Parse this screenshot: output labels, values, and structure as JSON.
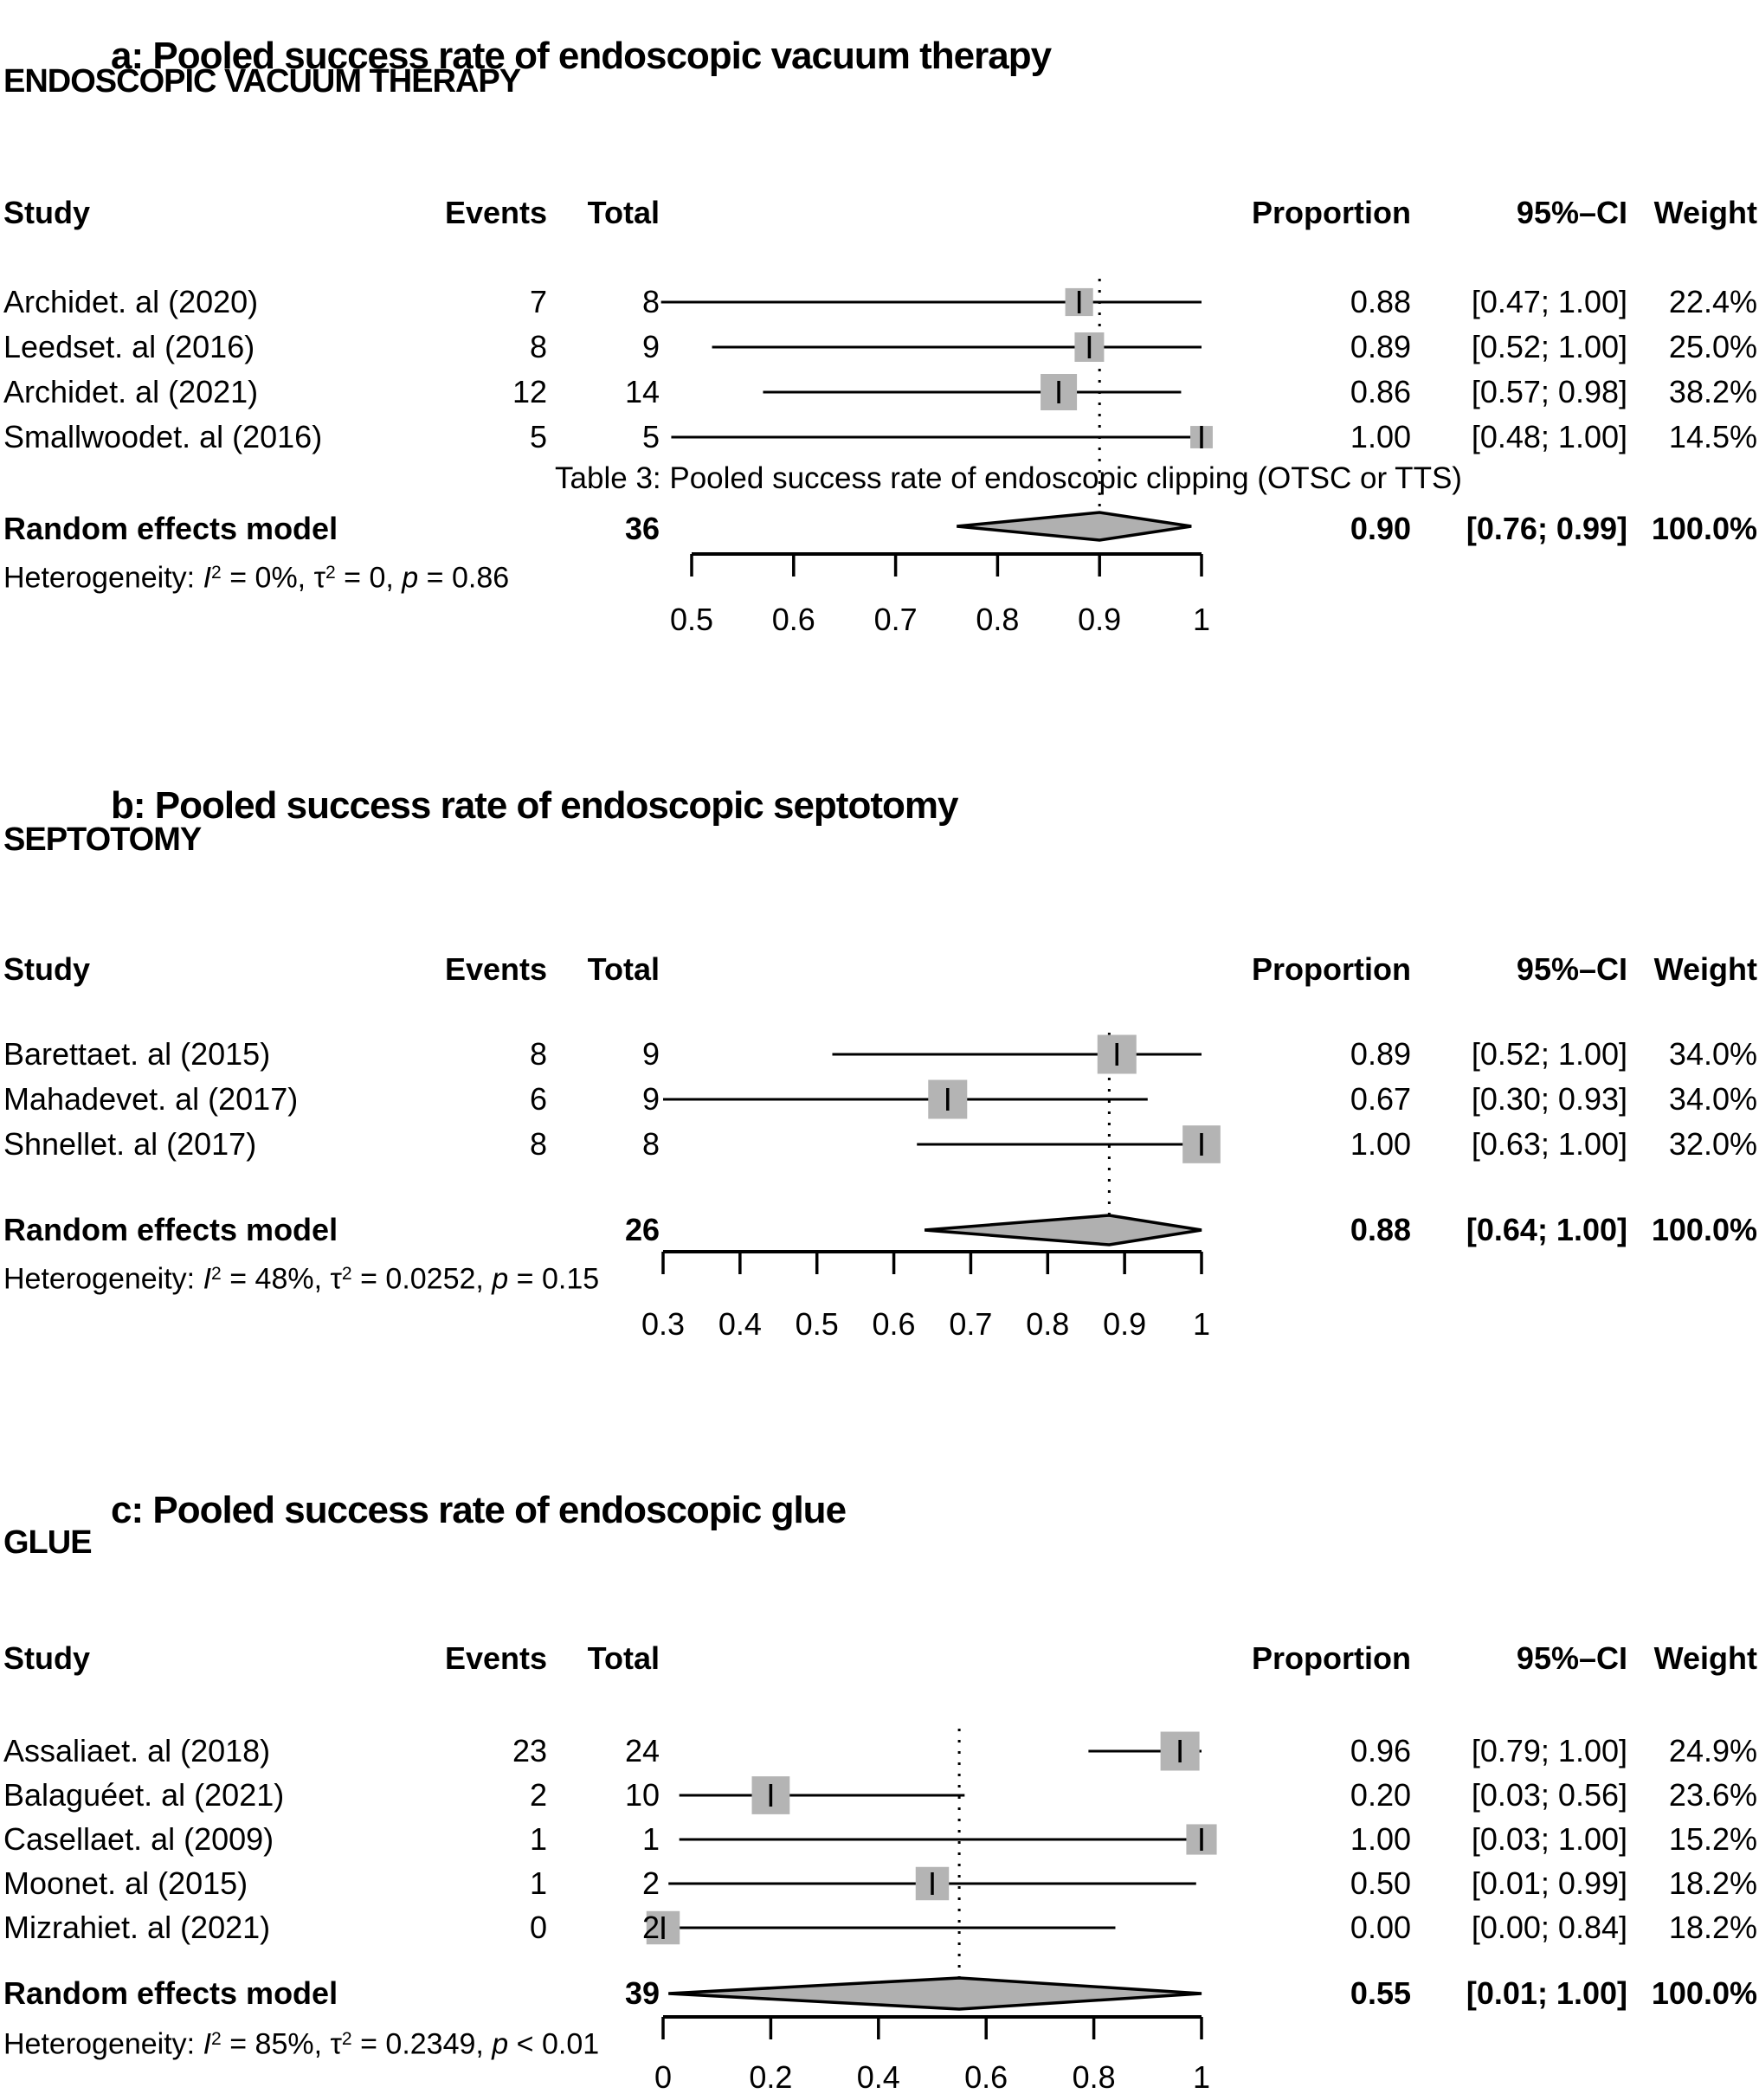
{
  "colors": {
    "marker_fill": "#b4b4b4",
    "diamond_fill": "#b0b0b0",
    "line": "#000000",
    "background": "#ffffff"
  },
  "figure": {
    "panels": [
      {
        "title": "a: Pooled success rate of endoscopic vacuum therapy",
        "section_label": "ENDOSCOPIC VACUUM THERAPY",
        "columns": {
          "study": "Study",
          "events": "Events",
          "total": "Total",
          "proportion": "Proportion",
          "ci": "95%–CI",
          "weight": "Weight"
        },
        "studies": [
          {
            "study": "Archidet. al (2020)",
            "events": "7",
            "total": "8",
            "proportion": "0.88",
            "ci": "[0.47; 1.00]",
            "weight": "22.4%"
          },
          {
            "study": "Leedset. al (2016)",
            "events": "8",
            "total": "9",
            "proportion": "0.89",
            "ci": "[0.52; 1.00]",
            "weight": "25.0%"
          },
          {
            "study": "Archidet. al (2021)",
            "events": "12",
            "total": "14",
            "proportion": "0.86",
            "ci": "[0.57; 0.98]",
            "weight": "38.2%"
          },
          {
            "study": "Smallwoodet. al (2016)",
            "events": "5",
            "total": "5",
            "proportion": "1.00",
            "ci": "[0.48; 1.00]",
            "weight": "14.5%"
          }
        ],
        "overlay_caption": "Table 3: Pooled success rate of endoscopic clipping (OTSC or TTS)",
        "summary": {
          "label": "Random effects model",
          "total": "36",
          "proportion": "0.90",
          "ci": "[0.76; 0.99]",
          "weight": "100.0%"
        },
        "heterogeneity": [
          {
            "t": "Heterogeneity: ",
            "s": ""
          },
          {
            "t": "I",
            "s": "i"
          },
          {
            "t": "2",
            "s": "sup"
          },
          {
            "t": " = 0%, ",
            "s": ""
          },
          {
            "t": "τ",
            "s": ""
          },
          {
            "t": "2",
            "s": "sup"
          },
          {
            "t": " = 0, ",
            "s": ""
          },
          {
            "t": "p",
            "s": "i"
          },
          {
            "t": " = 0.86",
            "s": ""
          }
        ],
        "axis_tick_labels": [
          "0.5",
          "0.6",
          "0.7",
          "0.8",
          "0.9",
          "1"
        ]
      },
      {
        "title": "b: Pooled success rate of endoscopic septotomy",
        "section_label": "SEPTOTOMY",
        "columns": {
          "study": "Study",
          "events": "Events",
          "total": "Total",
          "proportion": "Proportion",
          "ci": "95%–CI",
          "weight": "Weight"
        },
        "studies": [
          {
            "study": "Barettaet. al (2015)",
            "events": "8",
            "total": "9",
            "proportion": "0.89",
            "ci": "[0.52; 1.00]",
            "weight": "34.0%"
          },
          {
            "study": "Mahadevet. al (2017)",
            "events": "6",
            "total": "9",
            "proportion": "0.67",
            "ci": "[0.30; 0.93]",
            "weight": "34.0%"
          },
          {
            "study": "Shnellet. al (2017)",
            "events": "8",
            "total": "8",
            "proportion": "1.00",
            "ci": "[0.63; 1.00]",
            "weight": "32.0%"
          }
        ],
        "overlay_caption": "",
        "summary": {
          "label": "Random effects model",
          "total": "26",
          "proportion": "0.88",
          "ci": "[0.64; 1.00]",
          "weight": "100.0%"
        },
        "heterogeneity": [
          {
            "t": "Heterogeneity: ",
            "s": ""
          },
          {
            "t": "I",
            "s": "i"
          },
          {
            "t": "2",
            "s": "sup"
          },
          {
            "t": " = 48%, ",
            "s": ""
          },
          {
            "t": "τ",
            "s": ""
          },
          {
            "t": "2",
            "s": "sup"
          },
          {
            "t": " = 0.0252, ",
            "s": ""
          },
          {
            "t": "p",
            "s": "i"
          },
          {
            "t": " = 0.15",
            "s": ""
          }
        ],
        "axis_tick_labels": [
          "0.3",
          "0.4",
          "0.5",
          "0.6",
          "0.7",
          "0.8",
          "0.9",
          "1"
        ]
      },
      {
        "title": "c: Pooled success rate of endoscopic glue",
        "section_label": "GLUE",
        "columns": {
          "study": "Study",
          "events": "Events",
          "total": "Total",
          "proportion": "Proportion",
          "ci": "95%–CI",
          "weight": "Weight"
        },
        "studies": [
          {
            "study": "Assaliaet. al (2018)",
            "events": "23",
            "total": "24",
            "proportion": "0.96",
            "ci": "[0.79; 1.00]",
            "weight": "24.9%"
          },
          {
            "study": "Balaguéet. al (2021)",
            "events": "2",
            "total": "10",
            "proportion": "0.20",
            "ci": "[0.03; 0.56]",
            "weight": "23.6%"
          },
          {
            "study": "Casellaet. al (2009)",
            "events": "1",
            "total": "1",
            "proportion": "1.00",
            "ci": "[0.03; 1.00]",
            "weight": "15.2%"
          },
          {
            "study": "Moonet. al (2015)",
            "events": "1",
            "total": "2",
            "proportion": "0.50",
            "ci": "[0.01; 0.99]",
            "weight": "18.2%"
          },
          {
            "study": "Mizrahiet. al (2021)",
            "events": "0",
            "total": "2",
            "proportion": "0.00",
            "ci": "[0.00; 0.84]",
            "weight": "18.2%"
          }
        ],
        "overlay_caption": "",
        "summary": {
          "label": "Random effects model",
          "total": "39",
          "proportion": "0.55",
          "ci": "[0.01; 1.00]",
          "weight": "100.0%"
        },
        "heterogeneity": [
          {
            "t": "Heterogeneity: ",
            "s": ""
          },
          {
            "t": "I",
            "s": "i"
          },
          {
            "t": "2",
            "s": "sup"
          },
          {
            "t": " = 85%, ",
            "s": ""
          },
          {
            "t": "τ",
            "s": ""
          },
          {
            "t": "2",
            "s": "sup"
          },
          {
            "t": " = 0.2349, ",
            "s": ""
          },
          {
            "t": "p",
            "s": "i"
          },
          {
            "t": " < 0.01",
            "s": ""
          }
        ],
        "axis_tick_labels": [
          "0",
          "0.2",
          "0.4",
          "0.6",
          "0.8",
          "1"
        ]
      }
    ]
  },
  "chart_data": [
    {
      "type": "scatter",
      "subtype": "forest",
      "title": "a: Pooled success rate of endoscopic vacuum therapy",
      "group": "ENDOSCOPIC VACUUM THERAPY",
      "xlim": [
        0.5,
        1.0
      ],
      "xticks": [
        0.5,
        0.6,
        0.7,
        0.8,
        0.9,
        1.0
      ],
      "pooled_line": 0.9,
      "studies": [
        {
          "label": "Archidet. al (2020)",
          "events": 7,
          "total": 8,
          "proportion": 0.88,
          "ci": [
            0.47,
            1.0
          ],
          "weight_pct": 22.4
        },
        {
          "label": "Leedset. al (2016)",
          "events": 8,
          "total": 9,
          "proportion": 0.89,
          "ci": [
            0.52,
            1.0
          ],
          "weight_pct": 25.0
        },
        {
          "label": "Archidet. al (2021)",
          "events": 12,
          "total": 14,
          "proportion": 0.86,
          "ci": [
            0.57,
            0.98
          ],
          "weight_pct": 38.2
        },
        {
          "label": "Smallwoodet. al (2016)",
          "events": 5,
          "total": 5,
          "proportion": 1.0,
          "ci": [
            0.48,
            1.0
          ],
          "weight_pct": 14.5
        }
      ],
      "pooled": {
        "label": "Random effects model",
        "total": 36,
        "proportion": 0.9,
        "ci": [
          0.76,
          0.99
        ],
        "weight_pct": 100.0
      },
      "heterogeneity": {
        "I2": "0%",
        "tau2": "0",
        "p": "= 0.86"
      }
    },
    {
      "type": "scatter",
      "subtype": "forest",
      "title": "b: Pooled success rate of endoscopic septotomy",
      "group": "SEPTOTOMY",
      "xlim": [
        0.3,
        1.0
      ],
      "xticks": [
        0.3,
        0.4,
        0.5,
        0.6,
        0.7,
        0.8,
        0.9,
        1.0
      ],
      "pooled_line": 0.88,
      "studies": [
        {
          "label": "Barettaet. al (2015)",
          "events": 8,
          "total": 9,
          "proportion": 0.89,
          "ci": [
            0.52,
            1.0
          ],
          "weight_pct": 34.0
        },
        {
          "label": "Mahadevet. al (2017)",
          "events": 6,
          "total": 9,
          "proportion": 0.67,
          "ci": [
            0.3,
            0.93
          ],
          "weight_pct": 34.0
        },
        {
          "label": "Shnellet. al (2017)",
          "events": 8,
          "total": 8,
          "proportion": 1.0,
          "ci": [
            0.63,
            1.0
          ],
          "weight_pct": 32.0
        }
      ],
      "pooled": {
        "label": "Random effects model",
        "total": 26,
        "proportion": 0.88,
        "ci": [
          0.64,
          1.0
        ],
        "weight_pct": 100.0
      },
      "heterogeneity": {
        "I2": "48%",
        "tau2": "0.0252",
        "p": "= 0.15"
      }
    },
    {
      "type": "scatter",
      "subtype": "forest",
      "title": "c: Pooled success rate of endoscopic glue",
      "group": "GLUE",
      "xlim": [
        0.0,
        1.0
      ],
      "xticks": [
        0.0,
        0.2,
        0.4,
        0.6,
        0.8,
        1.0
      ],
      "pooled_line": 0.55,
      "studies": [
        {
          "label": "Assaliaet. al (2018)",
          "events": 23,
          "total": 24,
          "proportion": 0.96,
          "ci": [
            0.79,
            1.0
          ],
          "weight_pct": 24.9
        },
        {
          "label": "Balaguéet. al (2021)",
          "events": 2,
          "total": 10,
          "proportion": 0.2,
          "ci": [
            0.03,
            0.56
          ],
          "weight_pct": 23.6
        },
        {
          "label": "Casellaet. al (2009)",
          "events": 1,
          "total": 1,
          "proportion": 1.0,
          "ci": [
            0.03,
            1.0
          ],
          "weight_pct": 15.2
        },
        {
          "label": "Moonet. al (2015)",
          "events": 1,
          "total": 2,
          "proportion": 0.5,
          "ci": [
            0.01,
            0.99
          ],
          "weight_pct": 18.2
        },
        {
          "label": "Mizrahiet. al (2021)",
          "events": 0,
          "total": 2,
          "proportion": 0.0,
          "ci": [
            0.0,
            0.84
          ],
          "weight_pct": 18.2
        }
      ],
      "pooled": {
        "label": "Random effects model",
        "total": 39,
        "proportion": 0.55,
        "ci": [
          0.01,
          1.0
        ],
        "weight_pct": 100.0
      },
      "heterogeneity": {
        "I2": "85%",
        "tau2": "0.2349",
        "p": "< 0.01"
      }
    }
  ]
}
